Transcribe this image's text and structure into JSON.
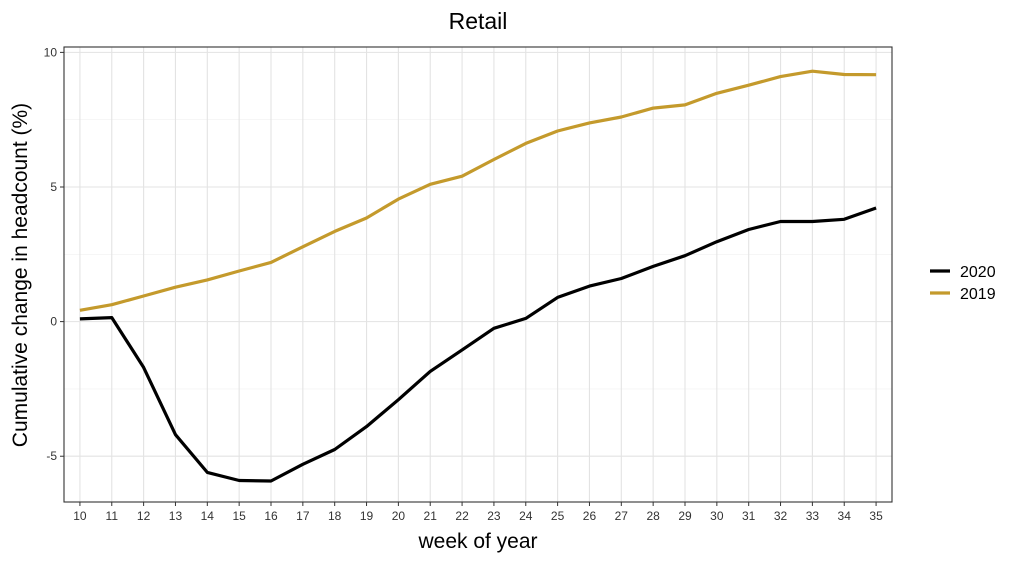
{
  "chart_data": {
    "type": "line",
    "title": "Retail",
    "xlabel": "week of year",
    "ylabel": "Cumulative change in headcount (%)",
    "x": [
      10,
      11,
      12,
      13,
      14,
      15,
      16,
      17,
      18,
      19,
      20,
      21,
      22,
      23,
      24,
      25,
      26,
      27,
      28,
      29,
      30,
      31,
      32,
      33,
      34,
      35
    ],
    "xlim": [
      9.5,
      35.5
    ],
    "ylim": [
      -6.7,
      10.2
    ],
    "yticks": [
      -5,
      0,
      5,
      10
    ],
    "grid": true,
    "legend_position": "right",
    "series": [
      {
        "name": "2020",
        "color": "#000000",
        "values": [
          0.1,
          0.15,
          -1.7,
          -4.2,
          -5.6,
          -5.9,
          -5.92,
          -5.3,
          -4.75,
          -3.9,
          -2.9,
          -1.85,
          -1.05,
          -0.25,
          0.12,
          0.9,
          1.32,
          1.6,
          2.05,
          2.45,
          2.97,
          3.42,
          3.72,
          3.72,
          3.8,
          4.22
        ]
      },
      {
        "name": "2019",
        "color": "#C49A2C",
        "values": [
          0.42,
          0.63,
          0.95,
          1.28,
          1.55,
          1.88,
          2.2,
          2.78,
          3.35,
          3.85,
          4.55,
          5.1,
          5.4,
          6.02,
          6.62,
          7.08,
          7.38,
          7.6,
          7.93,
          8.05,
          8.48,
          8.78,
          9.1,
          9.3,
          9.18,
          9.17
        ]
      }
    ]
  }
}
